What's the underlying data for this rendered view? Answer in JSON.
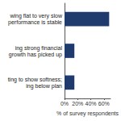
{
  "chart_data": {
    "type": "bar",
    "orientation": "horizontal",
    "categories": [
      "wing flat to very slow\nperformance is stable",
      "ing strong financial\ngrowth has picked up",
      "ting to show softness;\ning below plan"
    ],
    "values": [
      68,
      15,
      15
    ],
    "color": "#1f3b6e",
    "x_label": "% of survey respondents",
    "xlim": [
      0,
      70
    ],
    "xticks": [
      {
        "value": 0,
        "label": "0%"
      },
      {
        "value": 20,
        "label": "20%"
      },
      {
        "value": 40,
        "label": "40%"
      },
      {
        "value": 60,
        "label": "60%"
      }
    ],
    "grid": false
  }
}
